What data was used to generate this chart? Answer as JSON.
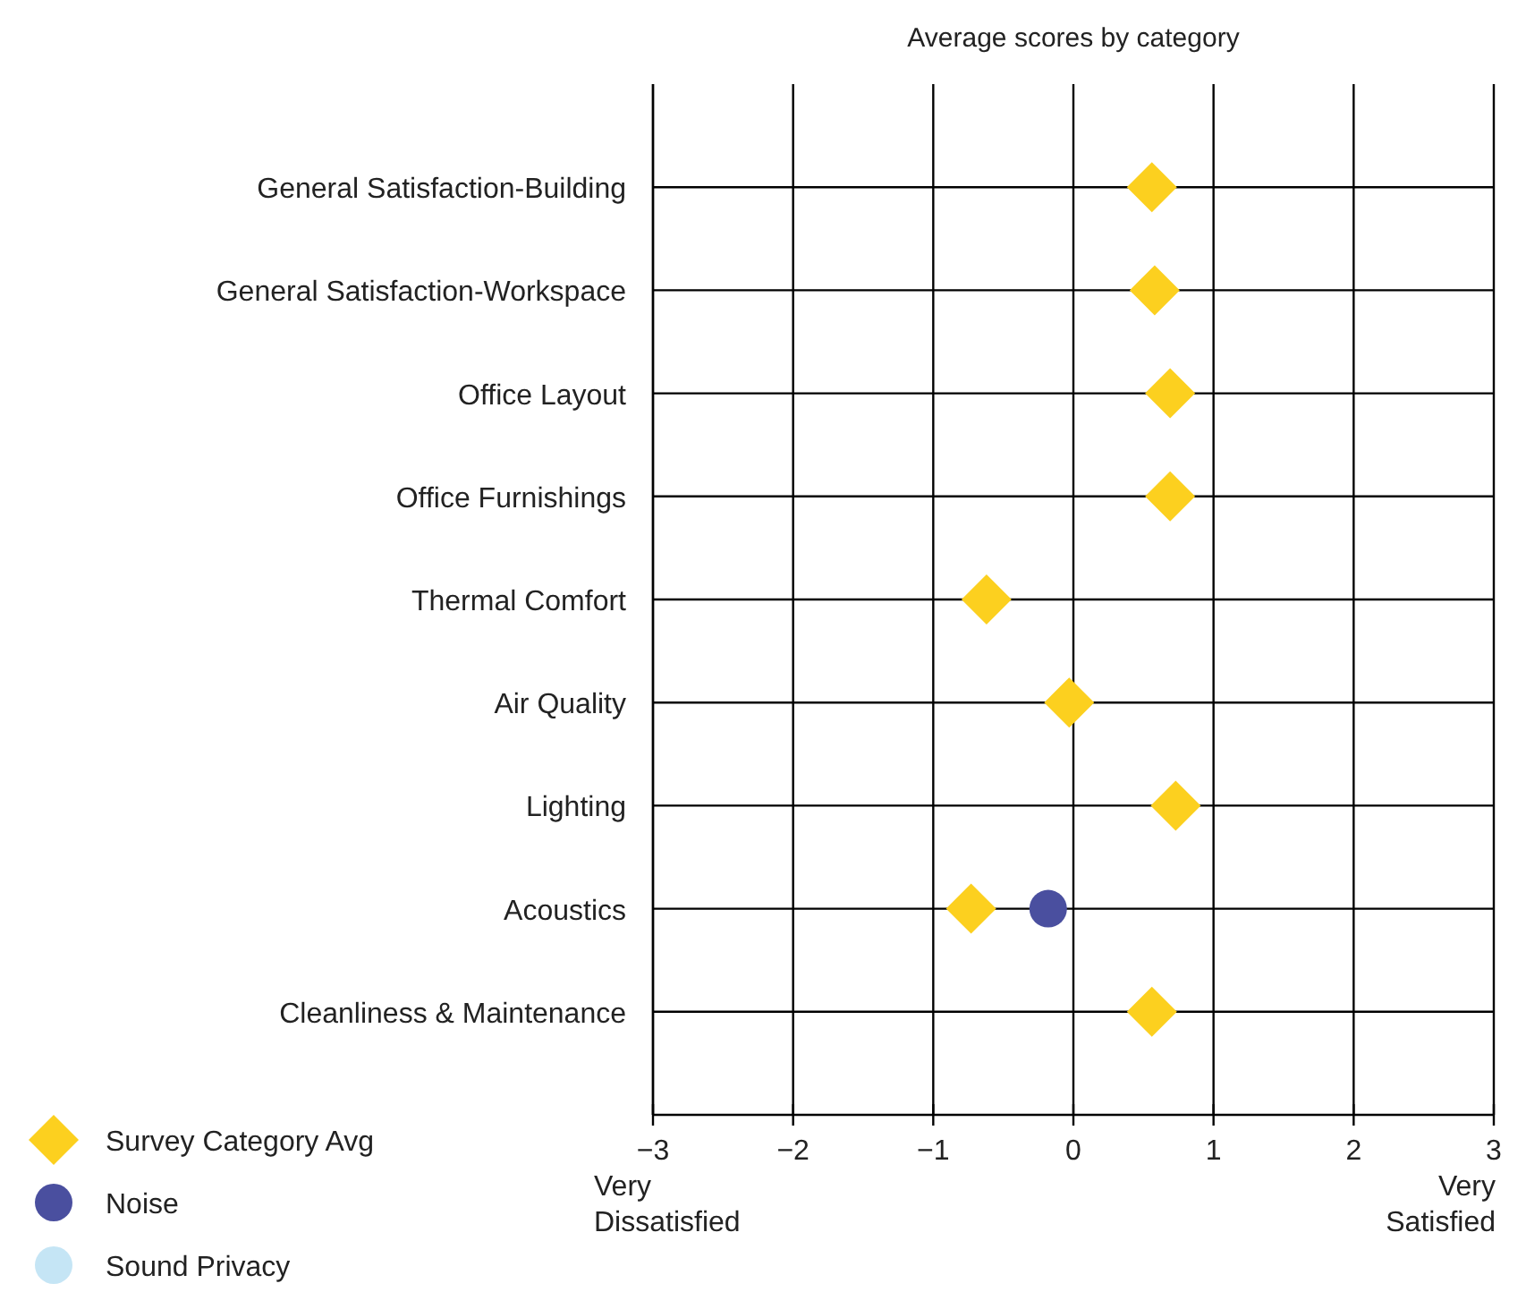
{
  "chart_data": {
    "type": "scatter",
    "title": "Average scores by category",
    "orientation": "horizontal",
    "categories": [
      "General Satisfaction-Building",
      "General Satisfaction-Workspace",
      "Office Layout",
      "Office Furnishings",
      "Thermal Comfort",
      "Air Quality",
      "Lighting",
      "Acoustics",
      "Cleanliness & Maintenance"
    ],
    "series": [
      {
        "name": "Survey Category Avg",
        "color": "#fcd01f",
        "marker": "diamond",
        "values": [
          0.56,
          0.58,
          0.69,
          0.69,
          -0.62,
          -0.03,
          0.73,
          -0.73,
          0.56
        ]
      },
      {
        "name": "Noise",
        "color": "#4a4f9f",
        "marker": "circle",
        "values": [
          null,
          null,
          null,
          null,
          null,
          null,
          null,
          -0.18,
          null
        ]
      },
      {
        "name": "Sound Privacy",
        "color": "#c5e5f5",
        "marker": "circle",
        "values": [
          null,
          null,
          null,
          null,
          null,
          null,
          null,
          null,
          null
        ]
      }
    ],
    "xlim": [
      -3,
      3
    ],
    "xticks": [
      {
        "value": -3,
        "label": "−3"
      },
      {
        "value": -2,
        "label": "−2"
      },
      {
        "value": -1,
        "label": "−1"
      },
      0,
      1,
      2,
      3
    ],
    "grid": true,
    "legend": "bottom left",
    "annotations": [
      "Very Dissatisfied",
      "Very Satisfied"
    ]
  }
}
